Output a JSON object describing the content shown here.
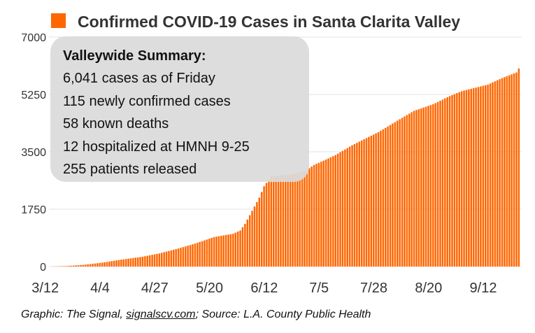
{
  "chart_data": {
    "type": "bar",
    "title": "Confirmed COVID-19 Cases in Santa Clarita Valley",
    "legend": {
      "entry": "Confirmed COVID-19 Cases in Santa Clarita Valley",
      "placement": "top-left"
    },
    "xlabel": "",
    "ylabel": "",
    "ylim": [
      0,
      7000
    ],
    "yticks": [
      "0",
      "1750",
      "3500",
      "5250",
      "7000"
    ],
    "xticks": [
      "3/12",
      "4/4",
      "4/27",
      "5/20",
      "6/12",
      "7/5",
      "7/28",
      "8/20",
      "9/12"
    ],
    "x_start": "3/12",
    "x_end": "9/25",
    "grid": true,
    "bar_color": "#ff6600",
    "anchors": [
      [
        "3/12",
        0
      ],
      [
        "3/19",
        15
      ],
      [
        "3/26",
        50
      ],
      [
        "4/1",
        100
      ],
      [
        "4/4",
        130
      ],
      [
        "4/10",
        200
      ],
      [
        "4/20",
        300
      ],
      [
        "4/27",
        400
      ],
      [
        "5/5",
        550
      ],
      [
        "5/12",
        700
      ],
      [
        "5/20",
        900
      ],
      [
        "5/24",
        950
      ],
      [
        "5/28",
        1000
      ],
      [
        "5/31",
        1100
      ],
      [
        "6/2",
        1300
      ],
      [
        "6/5",
        1700
      ],
      [
        "6/8",
        2100
      ],
      [
        "6/10",
        2450
      ],
      [
        "6/12",
        2650
      ],
      [
        "6/13",
        2750
      ],
      [
        "6/20",
        2800
      ],
      [
        "6/27",
        2900
      ],
      [
        "7/1",
        3100
      ],
      [
        "7/5",
        3230
      ],
      [
        "7/10",
        3400
      ],
      [
        "7/17",
        3700
      ],
      [
        "7/28",
        4100
      ],
      [
        "8/5",
        4450
      ],
      [
        "8/12",
        4750
      ],
      [
        "8/20",
        4950
      ],
      [
        "8/27",
        5200
      ],
      [
        "9/1",
        5350
      ],
      [
        "9/12",
        5550
      ],
      [
        "9/18",
        5750
      ],
      [
        "9/24",
        5920
      ],
      [
        "9/25",
        6041
      ]
    ]
  },
  "summary": {
    "title": "Valleywide Summary:",
    "lines": [
      "6,041 cases as of Friday",
      "115 newly confirmed cases",
      "58 known deaths",
      "12 hospitalized at HMNH 9-25",
      "255 patients released"
    ]
  },
  "credit": {
    "prefix": "Graphic: The Signal, ",
    "link": "signalscv.com",
    "suffix": "; Source: L.A. County Public Health"
  }
}
